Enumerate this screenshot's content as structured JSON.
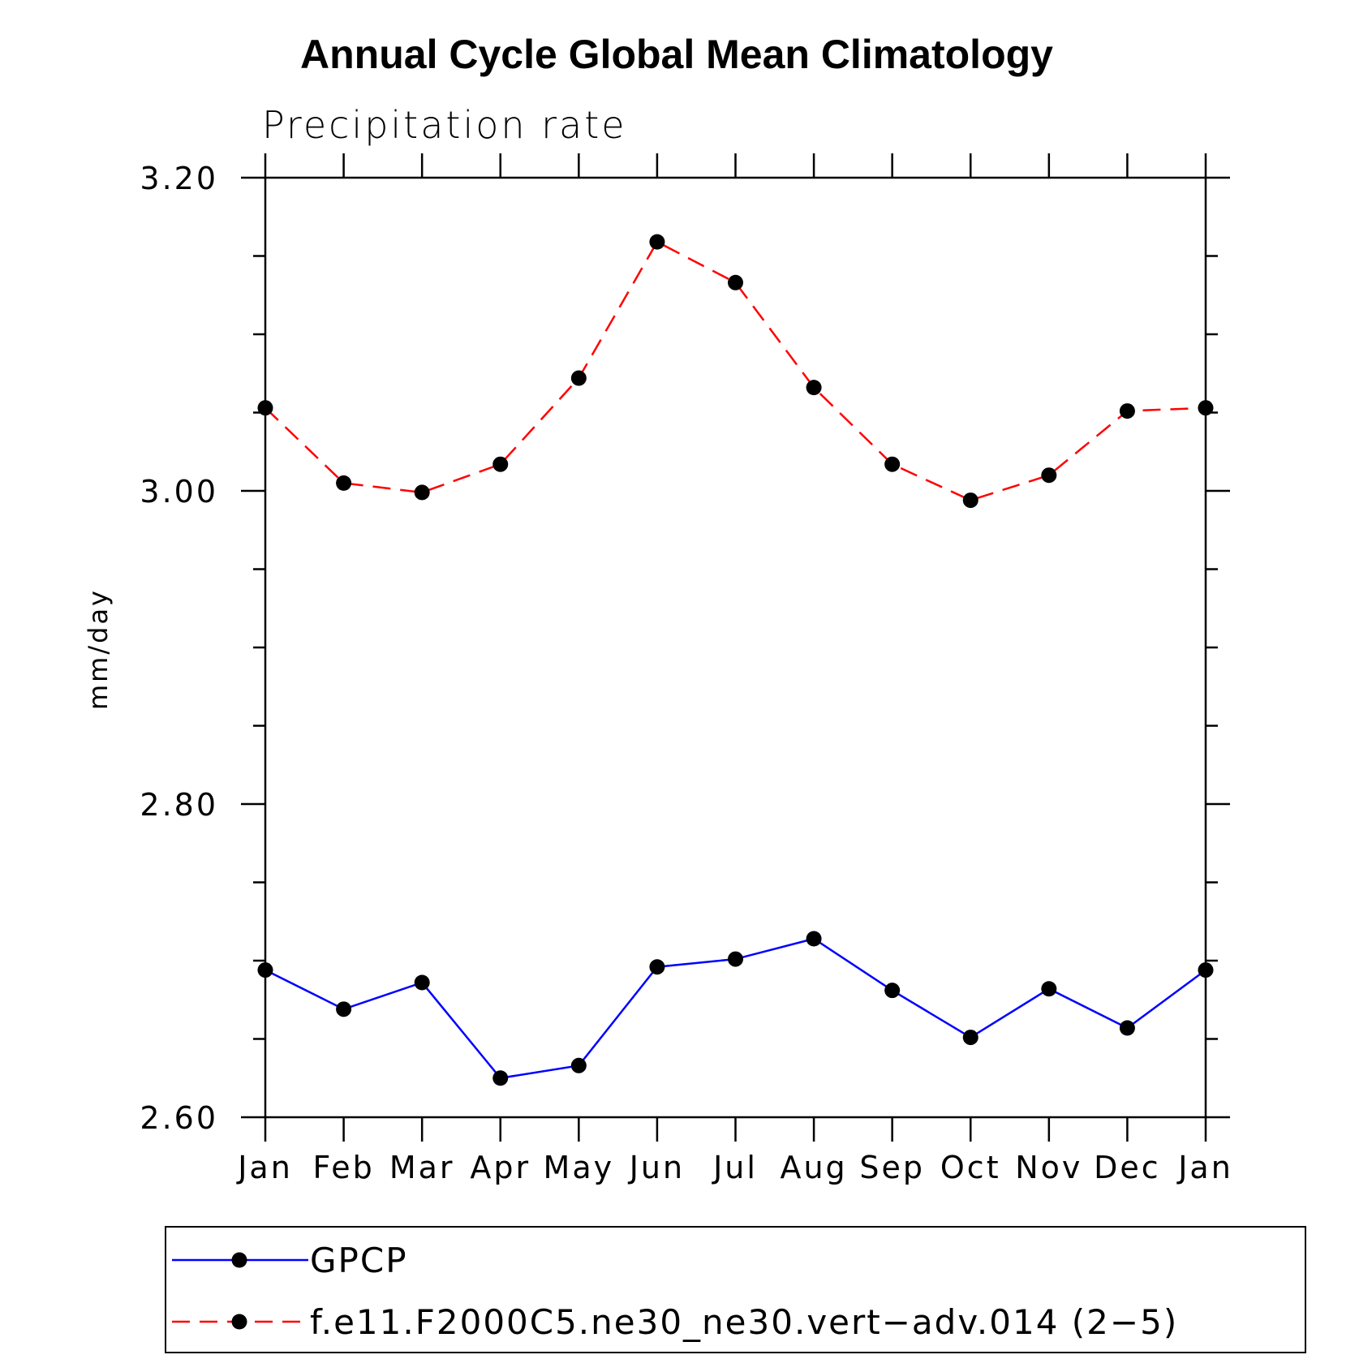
{
  "chart_data": {
    "type": "line",
    "title": "Annual Cycle Global Mean Climatology",
    "subtitle": "Precipitation rate",
    "xlabel": "",
    "ylabel": "mm/day",
    "categories": [
      "Jan",
      "Feb",
      "Mar",
      "Apr",
      "May",
      "Jun",
      "Jul",
      "Aug",
      "Sep",
      "Oct",
      "Nov",
      "Dec",
      "Jan"
    ],
    "ylim": [
      2.6,
      3.2
    ],
    "yticks": [
      "2.60",
      "2.80",
      "3.00",
      "3.20"
    ],
    "grid": false,
    "legend_position": "bottom",
    "series": [
      {
        "name": "GPCP",
        "color": "#0000ff",
        "dash": "solid",
        "marker": "filled-circle",
        "values": [
          2.694,
          2.669,
          2.686,
          2.625,
          2.633,
          2.696,
          2.701,
          2.714,
          2.681,
          2.651,
          2.682,
          2.657,
          2.694
        ]
      },
      {
        "name": "f.e11.F2000C5.ne30_ne30.vert−adv.014 (2−5)",
        "color": "#ff0000",
        "dash": "dashed",
        "marker": "filled-circle",
        "values": [
          3.053,
          3.005,
          2.999,
          3.017,
          3.072,
          3.159,
          3.133,
          3.066,
          3.017,
          2.994,
          3.01,
          3.051,
          3.053
        ]
      }
    ]
  }
}
